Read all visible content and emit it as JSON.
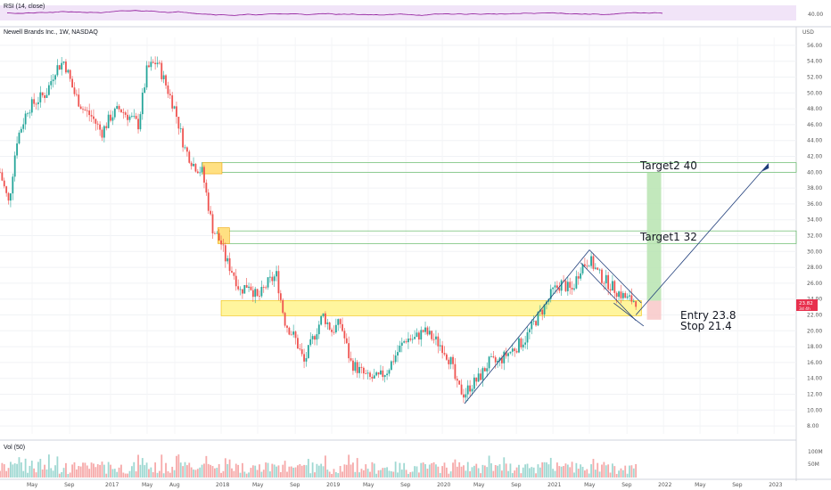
{
  "header": {
    "rsi_label": "RSI (14, close)",
    "title": "Newell Brands Inc., 1W, NASDAQ",
    "vol_label": "Vol (50)",
    "currency": "USD",
    "price_tag": "23.82",
    "price_tag_sub": "3d 4h"
  },
  "chart_data": {
    "type": "candlestick",
    "title": "Newell Brands Inc., 1W, NASDAQ",
    "ylabel": "USD",
    "ylim": [
      7,
      57
    ],
    "y_ticks": [
      "56.00",
      "54.00",
      "52.00",
      "50.00",
      "48.00",
      "46.00",
      "44.00",
      "42.00",
      "40.00",
      "38.00",
      "36.00",
      "34.00",
      "32.00",
      "30.00",
      "28.00",
      "26.00",
      "24.00",
      "22.00",
      "20.00",
      "18.00",
      "16.00",
      "14.00",
      "12.00",
      "10.00",
      "8.00"
    ],
    "x_ticks": [
      "May",
      "Sep",
      "2017",
      "May",
      "Aug",
      "2018",
      "May",
      "Sep",
      "2019",
      "May",
      "Sep",
      "2020",
      "May",
      "Sep",
      "2021",
      "May",
      "Sep",
      "2022",
      "May",
      "Sep",
      "2023"
    ],
    "x_range": [
      2016.0,
      2023.2
    ],
    "close_path": [
      [
        2016.0,
        40
      ],
      [
        2016.08,
        36
      ],
      [
        2016.15,
        44
      ],
      [
        2016.25,
        48
      ],
      [
        2016.33,
        49
      ],
      [
        2016.42,
        50
      ],
      [
        2016.5,
        53
      ],
      [
        2016.58,
        54
      ],
      [
        2016.67,
        50
      ],
      [
        2016.75,
        48
      ],
      [
        2016.83,
        47
      ],
      [
        2016.92,
        45
      ],
      [
        2017.0,
        47
      ],
      [
        2017.08,
        48
      ],
      [
        2017.17,
        47
      ],
      [
        2017.25,
        46
      ],
      [
        2017.33,
        53
      ],
      [
        2017.42,
        54
      ],
      [
        2017.5,
        51
      ],
      [
        2017.58,
        48
      ],
      [
        2017.67,
        43
      ],
      [
        2017.75,
        41
      ],
      [
        2017.83,
        40
      ],
      [
        2017.92,
        33
      ],
      [
        2018.0,
        31
      ],
      [
        2018.04,
        29
      ],
      [
        2018.08,
        28
      ],
      [
        2018.12,
        27
      ],
      [
        2018.17,
        25
      ],
      [
        2018.25,
        26
      ],
      [
        2018.33,
        24
      ],
      [
        2018.42,
        26
      ],
      [
        2018.5,
        27
      ],
      [
        2018.55,
        23
      ],
      [
        2018.58,
        21
      ],
      [
        2018.67,
        19
      ],
      [
        2018.75,
        16
      ],
      [
        2018.83,
        19
      ],
      [
        2018.92,
        22
      ],
      [
        2019.0,
        20
      ],
      [
        2019.08,
        21
      ],
      [
        2019.17,
        16
      ],
      [
        2019.25,
        15
      ],
      [
        2019.33,
        14
      ],
      [
        2019.42,
        14
      ],
      [
        2019.5,
        15
      ],
      [
        2019.58,
        17
      ],
      [
        2019.67,
        19
      ],
      [
        2019.75,
        19
      ],
      [
        2019.83,
        20
      ],
      [
        2019.92,
        19
      ],
      [
        2020.0,
        18
      ],
      [
        2020.08,
        16
      ],
      [
        2020.13,
        13
      ],
      [
        2020.2,
        12
      ],
      [
        2020.25,
        13
      ],
      [
        2020.33,
        14
      ],
      [
        2020.42,
        16
      ],
      [
        2020.5,
        16
      ],
      [
        2020.58,
        17
      ],
      [
        2020.67,
        18
      ],
      [
        2020.75,
        19
      ],
      [
        2020.83,
        21
      ],
      [
        2020.92,
        23
      ],
      [
        2021.0,
        25
      ],
      [
        2021.08,
        26
      ],
      [
        2021.17,
        25
      ],
      [
        2021.25,
        28
      ],
      [
        2021.33,
        29
      ],
      [
        2021.42,
        27
      ],
      [
        2021.5,
        26
      ],
      [
        2021.58,
        25
      ],
      [
        2021.67,
        24
      ],
      [
        2021.75,
        23.8
      ]
    ],
    "zones": [
      {
        "label": "Target2 40",
        "low": 40,
        "high": 41.2,
        "x_start": 2017.83
      },
      {
        "label": "Target1 32",
        "low": 31,
        "high": 32.6,
        "x_start": 2018.0
      },
      {
        "label": "Entry 23.8",
        "low": 21.9,
        "high": 23.8,
        "x_start": 2018.0
      },
      {
        "label": "Stop 21.4",
        "value": 21.4
      }
    ],
    "volume_unit_labels": [
      "100M",
      "50M"
    ],
    "rsi_level": "40.00",
    "grid": true
  }
}
